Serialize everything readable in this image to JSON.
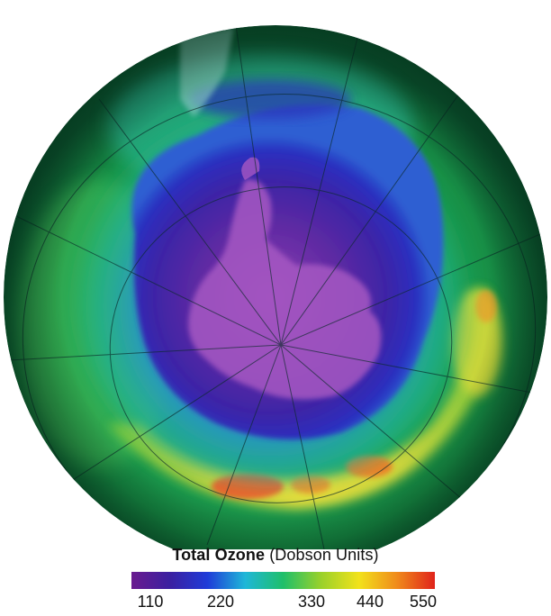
{
  "legend": {
    "title": "Total Ozone",
    "unit": "(Dobson Units)",
    "ticks": [
      "110",
      "220",
      "330",
      "440",
      "550"
    ],
    "min": 110,
    "max": 550,
    "colors": [
      "#6a1b8f",
      "#3b1fa0",
      "#1f3bd8",
      "#1fb7d8",
      "#1fbf6a",
      "#9ad12a",
      "#f2e21a",
      "#f08a1a",
      "#e0231b"
    ]
  },
  "map": {
    "projection": "south-polar orthographic",
    "center": "South Pole",
    "ocean_colors": {
      "high": "#ec5a2a",
      "mid": "#e8d83a",
      "low": "#22a24e"
    },
    "hole_colors": {
      "inner": "#9e44b8",
      "outer": "#2a27a8"
    }
  }
}
